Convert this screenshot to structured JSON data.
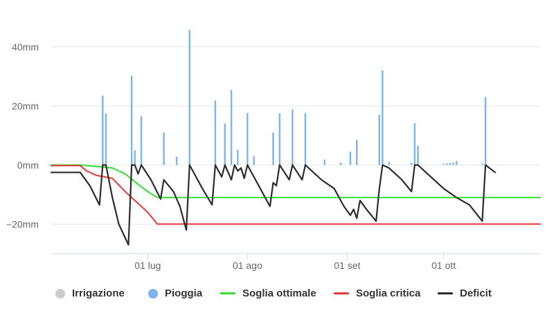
{
  "chart_data": {
    "type": "line",
    "title": "",
    "xlabel": "",
    "ylabel": "",
    "y_unit": "mm",
    "ylim": [
      -30,
      50
    ],
    "y_ticks": [
      -20,
      0,
      20,
      40
    ],
    "y_tick_labels": [
      "−20mm",
      "0mm",
      "20mm",
      "40mm"
    ],
    "xlim": [
      "2019-06-01",
      "2019-10-31"
    ],
    "x_ticks": [
      "2019-07-01",
      "2019-08-01",
      "2019-09-01",
      "2019-10-01"
    ],
    "x_tick_labels": [
      "01 lug",
      "01 ago",
      "01 set",
      "01 ott"
    ],
    "grid": "horizontal",
    "legend_position": "bottom",
    "series": [
      {
        "name": "Irrigazione",
        "kind": "bar",
        "color": "#cccccc",
        "points": []
      },
      {
        "name": "Pioggia",
        "kind": "bar",
        "color": "#7cb5ec",
        "points": [
          [
            "2019-06-17",
            23.5
          ],
          [
            "2019-06-18",
            17.5
          ],
          [
            "2019-06-26",
            30.2
          ],
          [
            "2019-06-27",
            5.0
          ],
          [
            "2019-06-29",
            16.5
          ],
          [
            "2019-07-06",
            11.0
          ],
          [
            "2019-07-10",
            2.8
          ],
          [
            "2019-07-14",
            45.8
          ],
          [
            "2019-07-22",
            21.8
          ],
          [
            "2019-07-25",
            14.0
          ],
          [
            "2019-07-27",
            25.4
          ],
          [
            "2019-07-29",
            5.2
          ],
          [
            "2019-08-01",
            17.6
          ],
          [
            "2019-08-03",
            3.0
          ],
          [
            "2019-08-09",
            11.0
          ],
          [
            "2019-08-11",
            17.5
          ],
          [
            "2019-08-15",
            18.8
          ],
          [
            "2019-08-19",
            17.6
          ],
          [
            "2019-08-25",
            1.8
          ],
          [
            "2019-08-30",
            0.8
          ],
          [
            "2019-09-02",
            4.5
          ],
          [
            "2019-09-04",
            8.5
          ],
          [
            "2019-09-11",
            17.0
          ],
          [
            "2019-09-12",
            32.0
          ],
          [
            "2019-09-14",
            1.0
          ],
          [
            "2019-09-21",
            0.8
          ],
          [
            "2019-09-22",
            14.2
          ],
          [
            "2019-09-23",
            6.5
          ],
          [
            "2019-10-01",
            0.5
          ],
          [
            "2019-10-02",
            0.6
          ],
          [
            "2019-10-03",
            0.7
          ],
          [
            "2019-10-04",
            0.8
          ],
          [
            "2019-10-05",
            1.4
          ],
          [
            "2019-10-13",
            0.5
          ],
          [
            "2019-10-14",
            23.0
          ]
        ]
      },
      {
        "name": "Soglia ottimale",
        "kind": "line",
        "color": "#33dd33",
        "points": [
          [
            "2019-06-01",
            0
          ],
          [
            "2019-06-10",
            0
          ],
          [
            "2019-06-15",
            -0.5
          ],
          [
            "2019-06-20",
            -1
          ],
          [
            "2019-06-24",
            -3
          ],
          [
            "2019-06-28",
            -6.5
          ],
          [
            "2019-07-01",
            -9
          ],
          [
            "2019-07-04",
            -11
          ],
          [
            "2019-10-31",
            -11
          ]
        ]
      },
      {
        "name": "Soglia critica",
        "kind": "line",
        "color": "#e83535",
        "points": [
          [
            "2019-06-01",
            -0.2
          ],
          [
            "2019-06-10",
            -0.2
          ],
          [
            "2019-06-12",
            -2
          ],
          [
            "2019-06-15",
            -3.5
          ],
          [
            "2019-06-20",
            -4.5
          ],
          [
            "2019-06-24",
            -9
          ],
          [
            "2019-06-28",
            -13
          ],
          [
            "2019-07-01",
            -16
          ],
          [
            "2019-07-04",
            -20
          ],
          [
            "2019-10-31",
            -20
          ]
        ]
      },
      {
        "name": "Deficit",
        "kind": "line",
        "color": "#2b2b2b",
        "points": [
          [
            "2019-06-01",
            -2.5
          ],
          [
            "2019-06-10",
            -2.5
          ],
          [
            "2019-06-13",
            -7
          ],
          [
            "2019-06-16",
            -13.5
          ],
          [
            "2019-06-17",
            0
          ],
          [
            "2019-06-18",
            0
          ],
          [
            "2019-06-20",
            -11
          ],
          [
            "2019-06-22",
            -20
          ],
          [
            "2019-06-25",
            -27
          ],
          [
            "2019-06-26",
            0
          ],
          [
            "2019-06-27",
            0
          ],
          [
            "2019-06-28",
            -3
          ],
          [
            "2019-06-29",
            0
          ],
          [
            "2019-07-02",
            -5
          ],
          [
            "2019-07-05",
            -11.5
          ],
          [
            "2019-07-06",
            -5
          ],
          [
            "2019-07-09",
            -9
          ],
          [
            "2019-07-11",
            -14
          ],
          [
            "2019-07-13",
            -22
          ],
          [
            "2019-07-14",
            0
          ],
          [
            "2019-07-18",
            -8
          ],
          [
            "2019-07-21",
            -13.5
          ],
          [
            "2019-07-22",
            0
          ],
          [
            "2019-07-24",
            -4
          ],
          [
            "2019-07-25",
            0
          ],
          [
            "2019-07-27",
            -5
          ],
          [
            "2019-07-28",
            0
          ],
          [
            "2019-07-29",
            -2
          ],
          [
            "2019-07-30",
            -1
          ],
          [
            "2019-07-31",
            -4.5
          ],
          [
            "2019-08-01",
            0
          ],
          [
            "2019-08-05",
            -8
          ],
          [
            "2019-08-08",
            -14
          ],
          [
            "2019-08-09",
            -6
          ],
          [
            "2019-08-10",
            -7
          ],
          [
            "2019-08-11",
            0
          ],
          [
            "2019-08-14",
            -5
          ],
          [
            "2019-08-15",
            0
          ],
          [
            "2019-08-18",
            -5
          ],
          [
            "2019-08-19",
            0
          ],
          [
            "2019-08-24",
            -5
          ],
          [
            "2019-08-28",
            -8
          ],
          [
            "2019-08-31",
            -14
          ],
          [
            "2019-09-02",
            -17
          ],
          [
            "2019-09-03",
            -15
          ],
          [
            "2019-09-04",
            -18
          ],
          [
            "2019-09-05",
            -12
          ],
          [
            "2019-09-07",
            -15
          ],
          [
            "2019-09-10",
            -19
          ],
          [
            "2019-09-11",
            -8
          ],
          [
            "2019-09-12",
            0
          ],
          [
            "2019-09-14",
            -1
          ],
          [
            "2019-09-18",
            -5
          ],
          [
            "2019-09-21",
            -9
          ],
          [
            "2019-09-22",
            0
          ],
          [
            "2019-09-23",
            0
          ],
          [
            "2019-09-27",
            -4
          ],
          [
            "2019-10-01",
            -8
          ],
          [
            "2019-10-05",
            -11
          ],
          [
            "2019-10-09",
            -13.5
          ],
          [
            "2019-10-13",
            -19
          ],
          [
            "2019-10-14",
            0
          ],
          [
            "2019-10-17",
            -2.5
          ]
        ]
      }
    ]
  }
}
